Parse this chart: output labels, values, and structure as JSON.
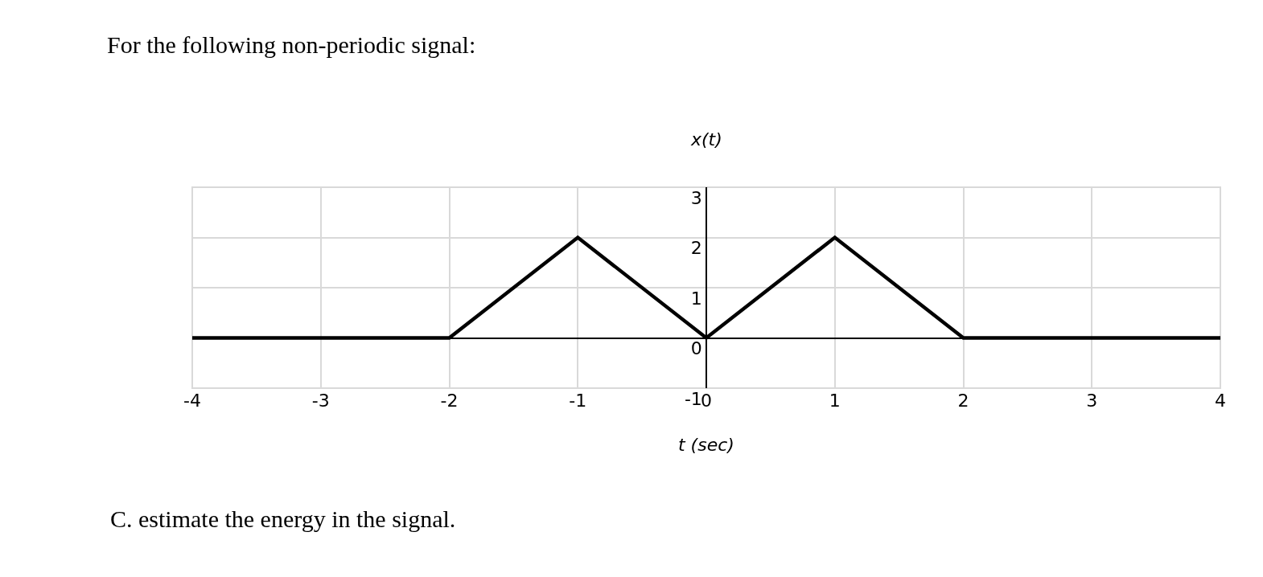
{
  "chart_data": {
    "type": "line",
    "title": "For the following non-periodic signal:",
    "ylabel": "x(t)",
    "xlabel": "t (sec)",
    "x": [
      -4,
      -2,
      -1,
      0,
      1,
      2,
      4
    ],
    "series": [
      {
        "color": "#000000",
        "values": [
          0,
          0,
          2,
          0,
          2,
          0,
          0
        ]
      }
    ],
    "xlim": [
      -4,
      4
    ],
    "xticks": [
      -4,
      -3,
      -2,
      -1,
      0,
      1,
      2,
      3,
      4
    ],
    "ylim": [
      -1,
      3
    ],
    "yticks": [
      -1,
      0,
      1,
      2,
      3
    ],
    "grid": true,
    "marker": "none",
    "line_style": "solid",
    "annotations": [
      "C. estimate the energy in the signal."
    ]
  }
}
